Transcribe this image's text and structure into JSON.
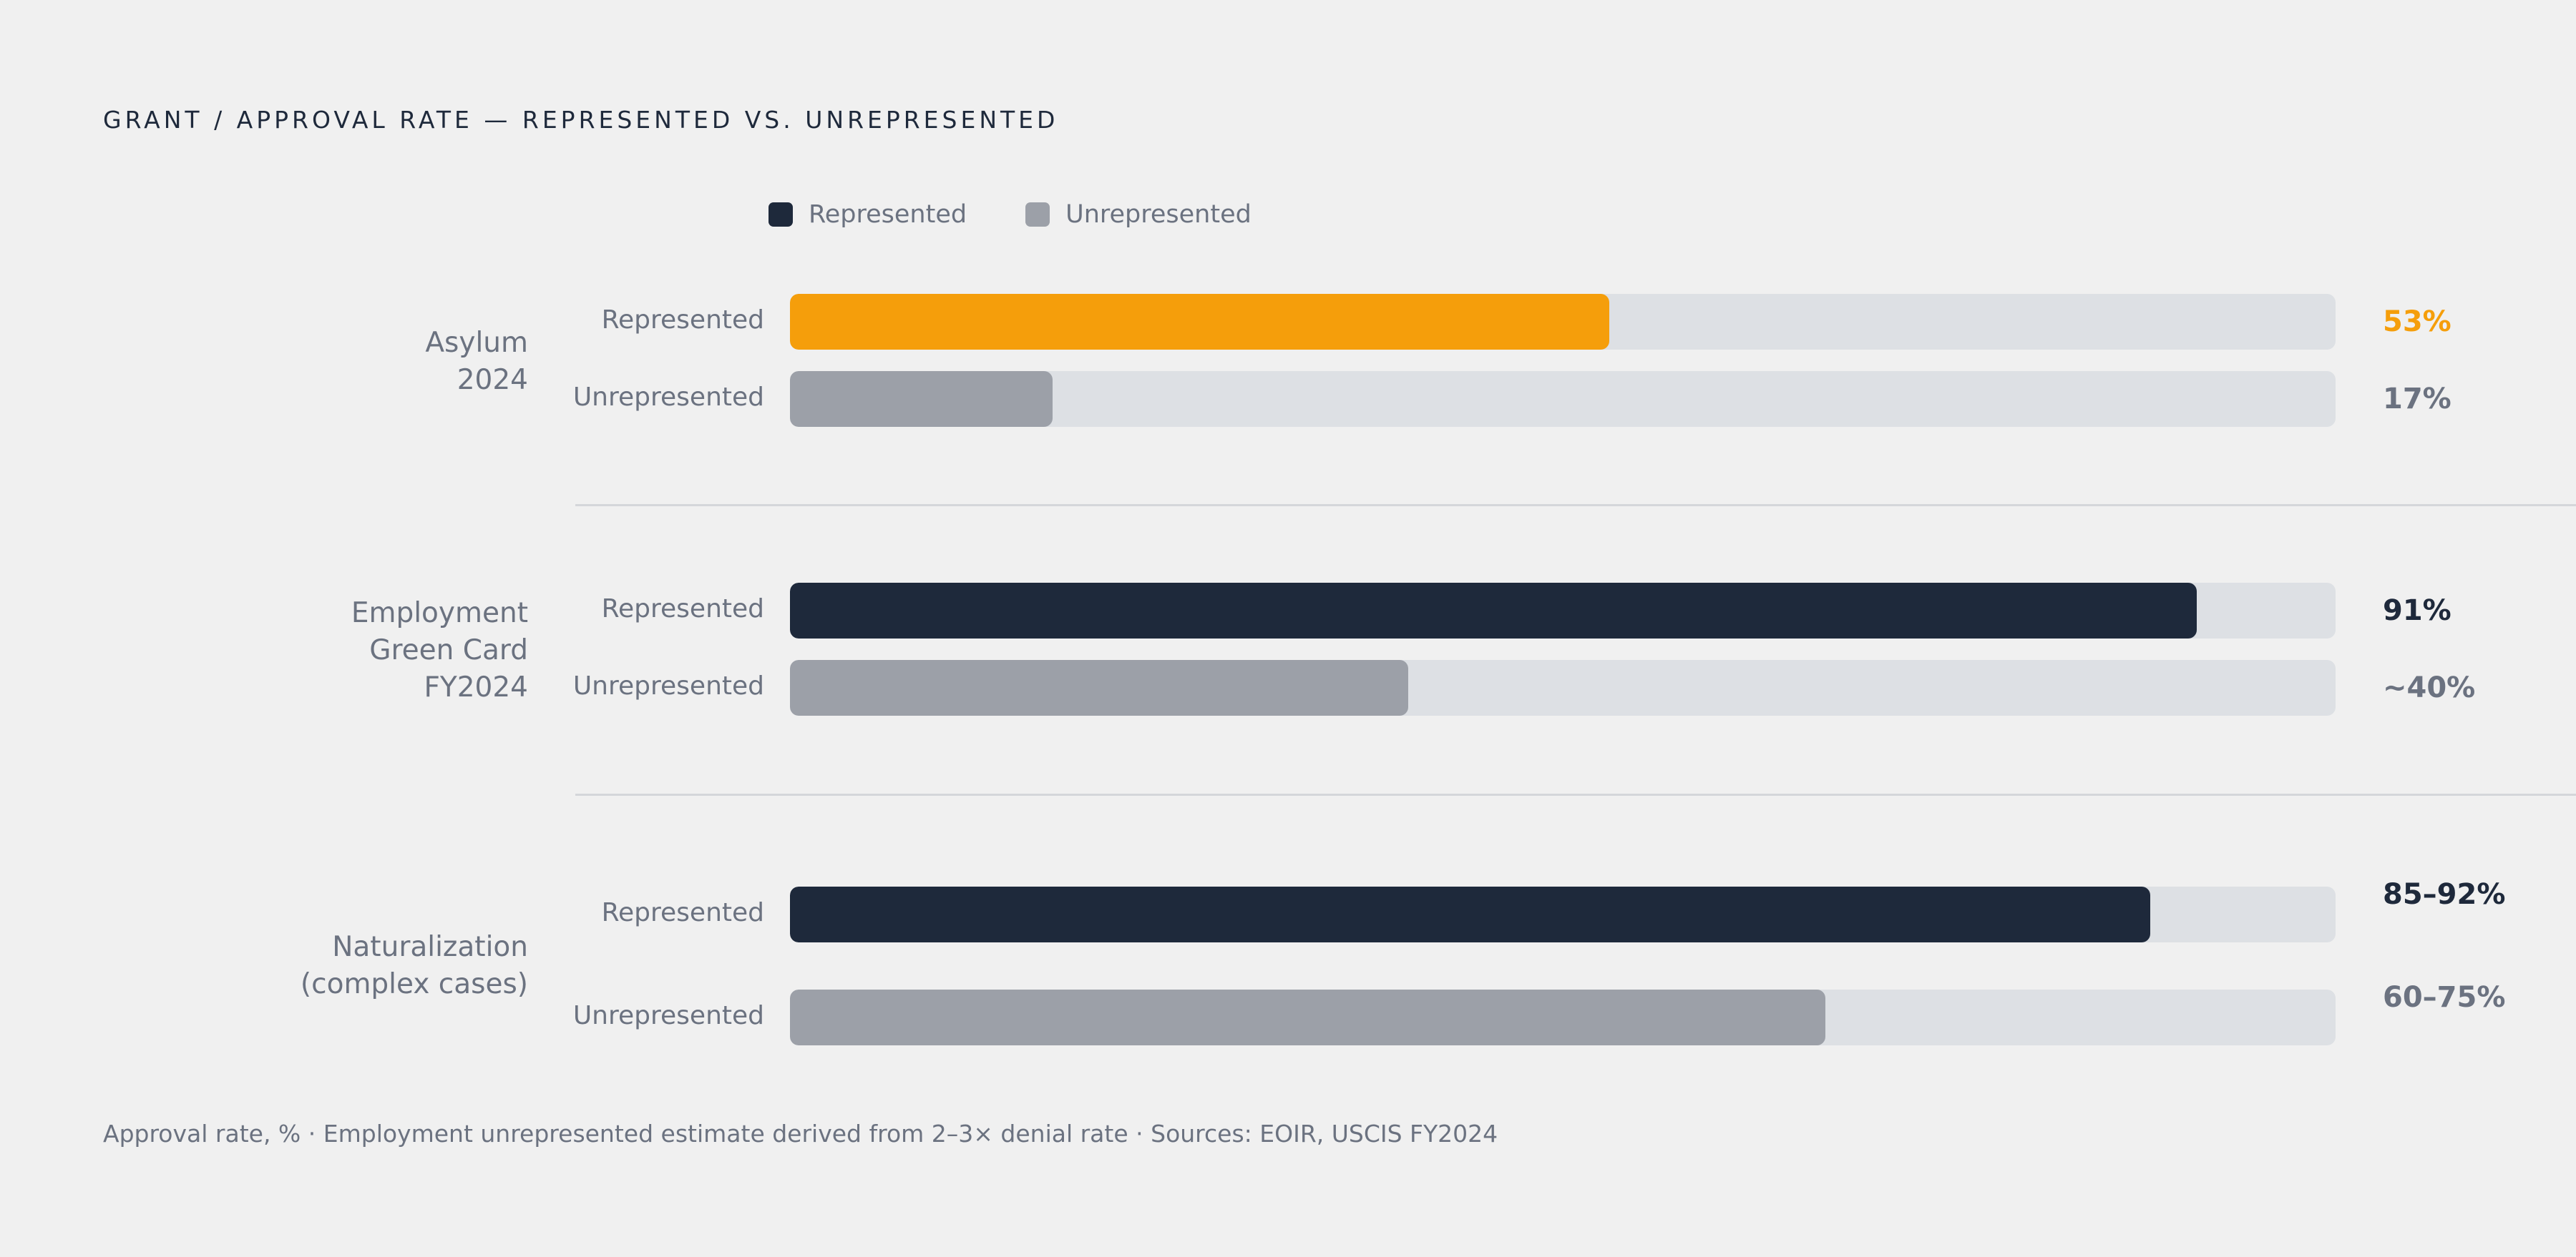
{
  "chart_data": {
    "type": "bar",
    "orientation": "horizontal",
    "title": "GRANT / APPROVAL RATE — REPRESENTED VS. UNREPRESENTED",
    "legend": [
      {
        "name": "Represented",
        "color": "#1e293b"
      },
      {
        "name": "Unrepresented",
        "color": "#9ca0a8"
      }
    ],
    "legend_placement": "top",
    "xlim": [
      0,
      100
    ],
    "groups": [
      {
        "label": "Asylum 2024",
        "bars": [
          {
            "label": "Represented",
            "value": 53,
            "display": "53%",
            "color": "#f59e0b",
            "text_color": "#f59e0b"
          },
          {
            "label": "Unrepresented",
            "value": 17,
            "display": "17%",
            "color": "#9ca0a8",
            "text_color": "#6b7280"
          }
        ]
      },
      {
        "label": "Employment Green Card FY2024",
        "bars": [
          {
            "label": "Represented",
            "value": 91,
            "display": "91%",
            "color": "#1e293b",
            "text_color": "#1e293b"
          },
          {
            "label": "Unrepresented",
            "value": 40,
            "display": "~40%",
            "color": "#9ca0a8",
            "text_color": "#6b7280"
          }
        ]
      },
      {
        "label": "Naturalization (complex cases)",
        "bars": [
          {
            "label": "Represented",
            "value": 88,
            "display": "85–92%",
            "color": "#1e293b",
            "text_color": "#1e293b"
          },
          {
            "label": "Unrepresented",
            "value": 67,
            "display": "60–75%",
            "color": "#9ca0a8",
            "text_color": "#6b7280"
          }
        ]
      }
    ],
    "footnote": "Approval rate, % · Employment unrepresented estimate derived from 2–3× denial rate · Sources: EOIR, USCIS FY2024"
  }
}
